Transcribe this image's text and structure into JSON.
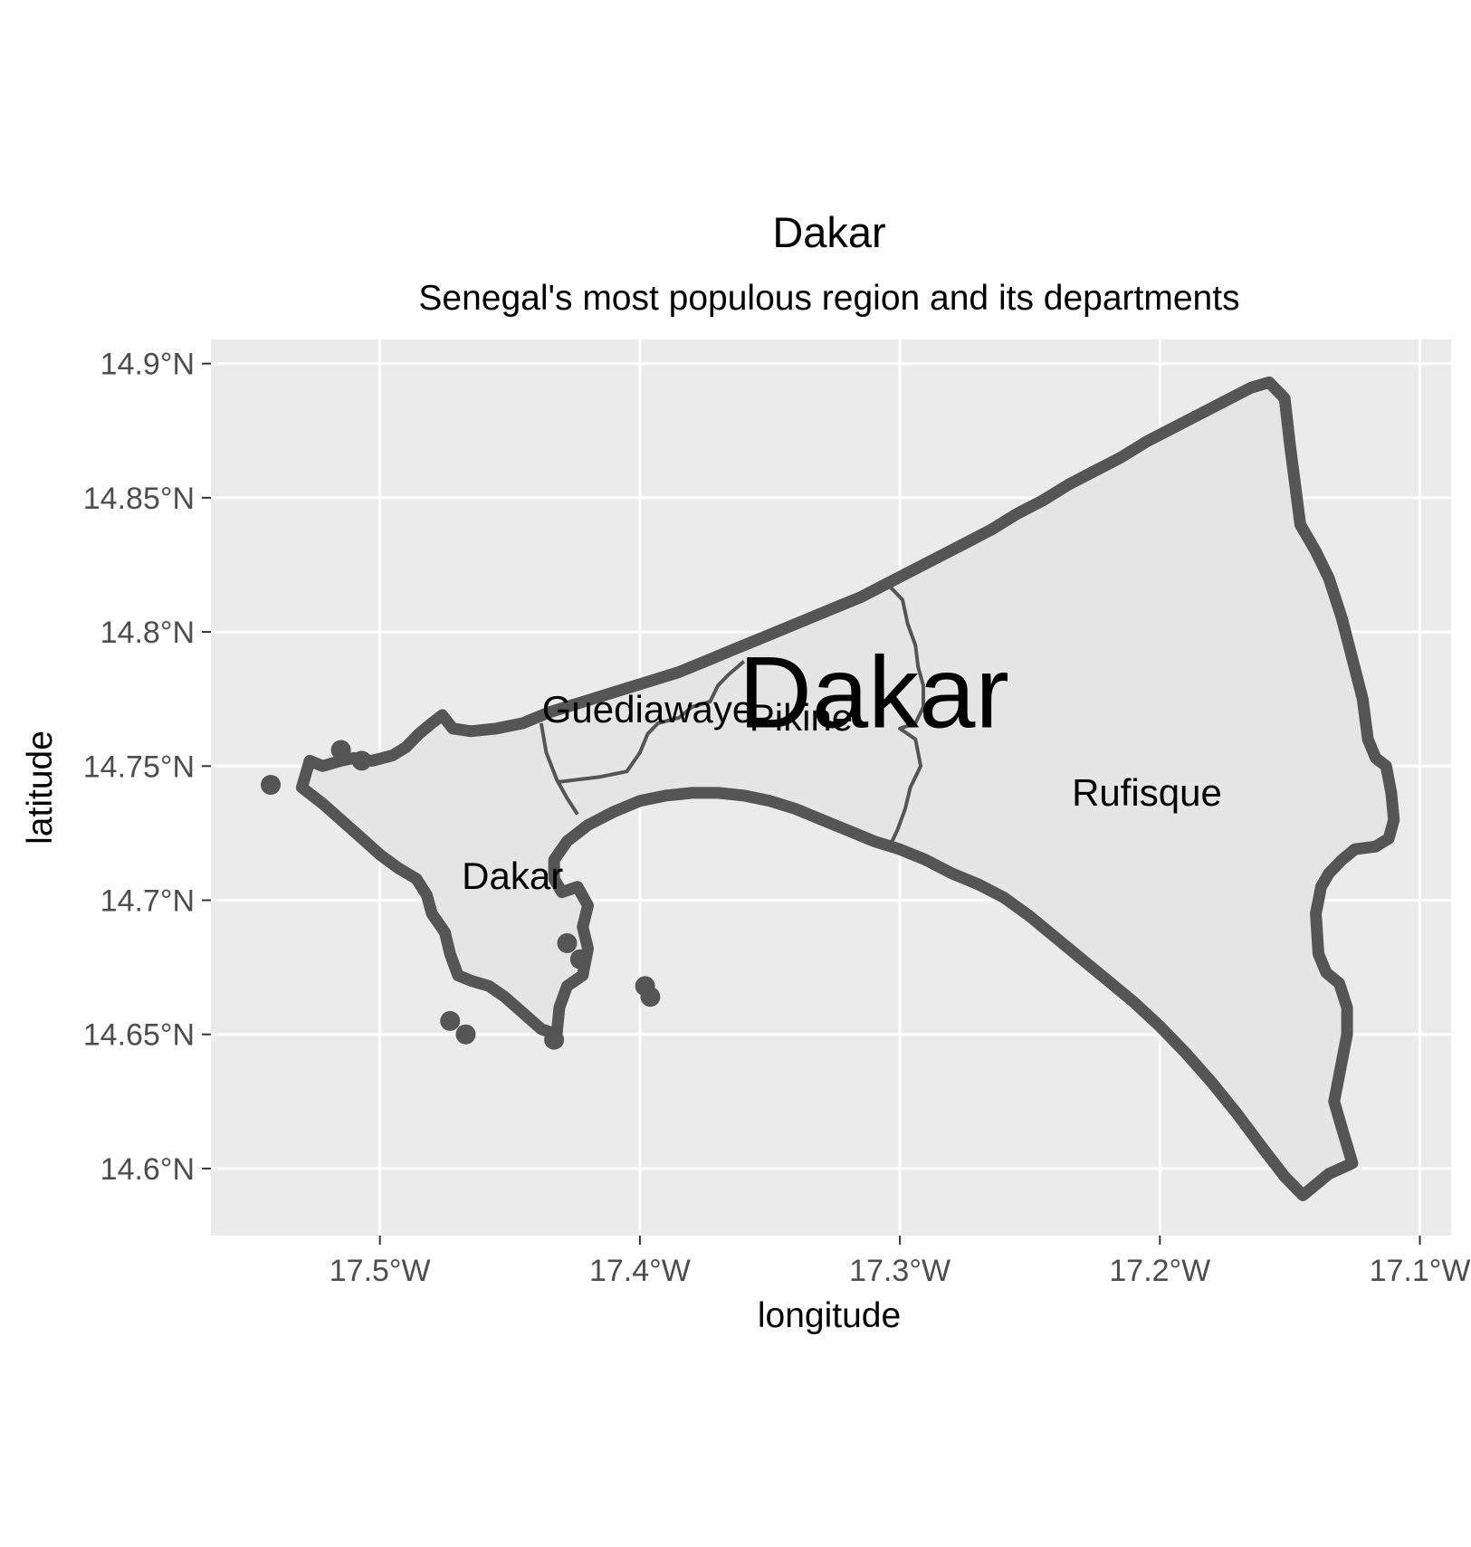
{
  "chart_data": {
    "type": "map",
    "title": "Dakar",
    "subtitle": "Senegal's most populous region and its departments",
    "xlabel": "longitude",
    "ylabel": "latitude",
    "xlim": [
      -17.565,
      -17.088
    ],
    "ylim": [
      14.575,
      14.909
    ],
    "x_ticks": [
      -17.5,
      -17.4,
      -17.3,
      -17.2,
      -17.1
    ],
    "x_tick_labels": [
      "17.5°W",
      "17.4°W",
      "17.3°W",
      "17.2°W",
      "17.1°W"
    ],
    "y_ticks": [
      14.6,
      14.65,
      14.7,
      14.75,
      14.8,
      14.85,
      14.9
    ],
    "y_tick_labels": [
      "14.6°N",
      "14.65°N",
      "14.7°N",
      "14.75°N",
      "14.8°N",
      "14.85°N",
      "14.9°N"
    ],
    "grid": true,
    "colors": {
      "panel": "#ebebeb",
      "gridline": "#ffffff",
      "region_fill": "#e5e5e5",
      "region_outline": "#555555",
      "department_border": "#555555"
    },
    "region": {
      "name": "Dakar",
      "label_position": [
        -17.31,
        14.778
      ],
      "outline": [
        [
          -17.53,
          14.742
        ],
        [
          -17.527,
          14.752
        ],
        [
          -17.522,
          14.75
        ],
        [
          -17.515,
          14.752
        ],
        [
          -17.51,
          14.753
        ],
        [
          -17.503,
          14.752
        ],
        [
          -17.495,
          14.754
        ],
        [
          -17.49,
          14.757
        ],
        [
          -17.485,
          14.762
        ],
        [
          -17.48,
          14.766
        ],
        [
          -17.476,
          14.769
        ],
        [
          -17.472,
          14.764
        ],
        [
          -17.465,
          14.763
        ],
        [
          -17.455,
          14.764
        ],
        [
          -17.445,
          14.766
        ],
        [
          -17.435,
          14.77
        ],
        [
          -17.425,
          14.773
        ],
        [
          -17.415,
          14.776
        ],
        [
          -17.405,
          14.779
        ],
        [
          -17.395,
          14.782
        ],
        [
          -17.385,
          14.785
        ],
        [
          -17.375,
          14.789
        ],
        [
          -17.365,
          14.793
        ],
        [
          -17.355,
          14.797
        ],
        [
          -17.345,
          14.801
        ],
        [
          -17.335,
          14.805
        ],
        [
          -17.325,
          14.809
        ],
        [
          -17.315,
          14.813
        ],
        [
          -17.305,
          14.818
        ],
        [
          -17.295,
          14.823
        ],
        [
          -17.285,
          14.828
        ],
        [
          -17.275,
          14.833
        ],
        [
          -17.265,
          14.838
        ],
        [
          -17.255,
          14.844
        ],
        [
          -17.245,
          14.849
        ],
        [
          -17.235,
          14.855
        ],
        [
          -17.225,
          14.86
        ],
        [
          -17.215,
          14.865
        ],
        [
          -17.205,
          14.871
        ],
        [
          -17.195,
          14.876
        ],
        [
          -17.185,
          14.881
        ],
        [
          -17.175,
          14.886
        ],
        [
          -17.165,
          14.891
        ],
        [
          -17.158,
          14.893
        ],
        [
          -17.152,
          14.887
        ],
        [
          -17.15,
          14.87
        ],
        [
          -17.148,
          14.855
        ],
        [
          -17.146,
          14.84
        ],
        [
          -17.14,
          14.83
        ],
        [
          -17.135,
          14.82
        ],
        [
          -17.13,
          14.805
        ],
        [
          -17.126,
          14.79
        ],
        [
          -17.122,
          14.775
        ],
        [
          -17.12,
          14.76
        ],
        [
          -17.117,
          14.753
        ],
        [
          -17.113,
          14.75
        ],
        [
          -17.111,
          14.74
        ],
        [
          -17.11,
          14.73
        ],
        [
          -17.112,
          14.723
        ],
        [
          -17.117,
          14.72
        ],
        [
          -17.125,
          14.719
        ],
        [
          -17.13,
          14.715
        ],
        [
          -17.135,
          14.71
        ],
        [
          -17.138,
          14.705
        ],
        [
          -17.14,
          14.695
        ],
        [
          -17.139,
          14.68
        ],
        [
          -17.136,
          14.673
        ],
        [
          -17.131,
          14.669
        ],
        [
          -17.128,
          14.66
        ],
        [
          -17.128,
          14.65
        ],
        [
          -17.13,
          14.64
        ],
        [
          -17.133,
          14.625
        ],
        [
          -17.13,
          14.615
        ],
        [
          -17.126,
          14.602
        ],
        [
          -17.135,
          14.598
        ],
        [
          -17.145,
          14.59
        ],
        [
          -17.152,
          14.597
        ],
        [
          -17.16,
          14.607
        ],
        [
          -17.17,
          14.62
        ],
        [
          -17.18,
          14.632
        ],
        [
          -17.19,
          14.643
        ],
        [
          -17.2,
          14.653
        ],
        [
          -17.21,
          14.662
        ],
        [
          -17.22,
          14.67
        ],
        [
          -17.23,
          14.678
        ],
        [
          -17.24,
          14.686
        ],
        [
          -17.25,
          14.694
        ],
        [
          -17.26,
          14.701
        ],
        [
          -17.27,
          14.706
        ],
        [
          -17.28,
          14.71
        ],
        [
          -17.29,
          14.715
        ],
        [
          -17.3,
          14.719
        ],
        [
          -17.31,
          14.722
        ],
        [
          -17.32,
          14.726
        ],
        [
          -17.33,
          14.73
        ],
        [
          -17.34,
          14.734
        ],
        [
          -17.35,
          14.737
        ],
        [
          -17.36,
          14.739
        ],
        [
          -17.37,
          14.74
        ],
        [
          -17.38,
          14.74
        ],
        [
          -17.39,
          14.739
        ],
        [
          -17.4,
          14.737
        ],
        [
          -17.41,
          14.733
        ],
        [
          -17.42,
          14.728
        ],
        [
          -17.428,
          14.722
        ],
        [
          -17.433,
          14.715
        ],
        [
          -17.433,
          14.708
        ],
        [
          -17.43,
          14.703
        ],
        [
          -17.424,
          14.705
        ],
        [
          -17.42,
          14.698
        ],
        [
          -17.422,
          14.69
        ],
        [
          -17.42,
          14.682
        ],
        [
          -17.422,
          14.672
        ],
        [
          -17.428,
          14.668
        ],
        [
          -17.431,
          14.66
        ],
        [
          -17.432,
          14.65
        ],
        [
          -17.438,
          14.652
        ],
        [
          -17.445,
          14.658
        ],
        [
          -17.452,
          14.664
        ],
        [
          -17.458,
          14.668
        ],
        [
          -17.465,
          14.67
        ],
        [
          -17.47,
          14.672
        ],
        [
          -17.473,
          14.68
        ],
        [
          -17.475,
          14.688
        ],
        [
          -17.48,
          14.695
        ],
        [
          -17.482,
          14.702
        ],
        [
          -17.486,
          14.708
        ],
        [
          -17.493,
          14.712
        ],
        [
          -17.5,
          14.717
        ],
        [
          -17.508,
          14.724
        ],
        [
          -17.515,
          14.73
        ],
        [
          -17.522,
          14.736
        ]
      ]
    },
    "islands": [
      [
        -17.542,
        14.743
      ],
      [
        -17.515,
        14.756
      ],
      [
        -17.507,
        14.752
      ],
      [
        -17.473,
        14.655
      ],
      [
        -17.467,
        14.65
      ],
      [
        -17.398,
        14.668
      ],
      [
        -17.396,
        14.664
      ],
      [
        -17.433,
        14.648
      ],
      [
        -17.428,
        14.684
      ],
      [
        -17.423,
        14.678
      ]
    ],
    "departments": [
      {
        "name": "Dakar",
        "label_position": [
          -17.449,
          14.709
        ],
        "label": "Dakar"
      },
      {
        "name": "Guediawaye",
        "label_position": [
          -17.397,
          14.771
        ],
        "label": "Guediawaye"
      },
      {
        "name": "Pikine",
        "label_position": [
          -17.338,
          14.768
        ],
        "label": "Pikine"
      },
      {
        "name": "Rufisque",
        "label_position": [
          -17.205,
          14.74
        ],
        "label": "Rufisque"
      }
    ],
    "internal_borders": [
      [
        [
          -17.438,
          14.766
        ],
        [
          -17.436,
          14.755
        ],
        [
          -17.432,
          14.745
        ],
        [
          -17.428,
          14.738
        ],
        [
          -17.424,
          14.732
        ]
      ],
      [
        [
          -17.432,
          14.744
        ],
        [
          -17.415,
          14.746
        ],
        [
          -17.405,
          14.748
        ],
        [
          -17.4,
          14.755
        ],
        [
          -17.397,
          14.762
        ],
        [
          -17.393,
          14.766
        ],
        [
          -17.385,
          14.768
        ],
        [
          -17.38,
          14.772
        ],
        [
          -17.373,
          14.774
        ],
        [
          -17.37,
          14.78
        ],
        [
          -17.366,
          14.784
        ],
        [
          -17.36,
          14.789
        ]
      ],
      [
        [
          -17.305,
          14.818
        ],
        [
          -17.299,
          14.812
        ],
        [
          -17.297,
          14.803
        ],
        [
          -17.294,
          14.795
        ],
        [
          -17.293,
          14.787
        ],
        [
          -17.291,
          14.78
        ],
        [
          -17.291,
          14.772
        ],
        [
          -17.294,
          14.766
        ],
        [
          -17.3,
          14.764
        ],
        [
          -17.294,
          14.76
        ],
        [
          -17.292,
          14.75
        ],
        [
          -17.296,
          14.742
        ],
        [
          -17.298,
          14.734
        ],
        [
          -17.301,
          14.726
        ],
        [
          -17.304,
          14.72
        ]
      ]
    ]
  }
}
